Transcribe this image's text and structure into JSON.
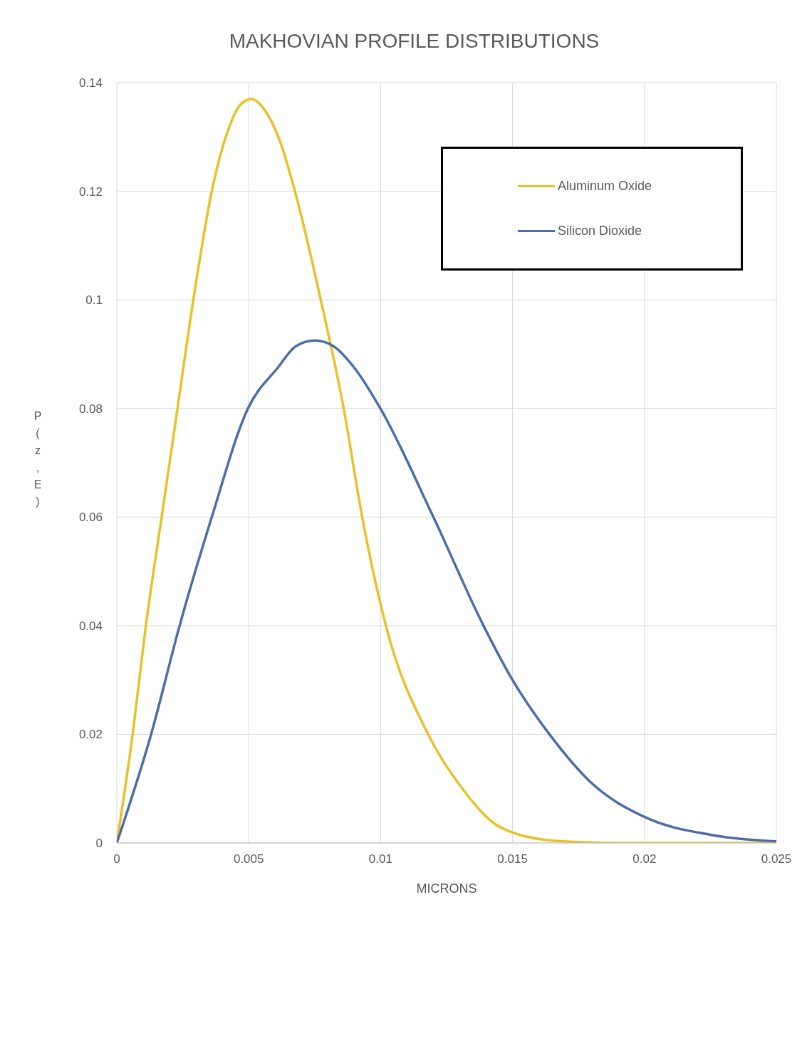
{
  "chart_data": {
    "type": "line",
    "title": "MAKHOVIAN PROFILE DISTRIBUTIONS",
    "xlabel": "MICRONS",
    "ylabel": "P(z,E)",
    "xlim": [
      0,
      0.025
    ],
    "xticks": [
      0,
      0.005,
      0.01,
      0.015,
      0.02,
      0.025
    ],
    "ylim": [
      0,
      0.14
    ],
    "yticks": [
      0,
      0.02,
      0.04,
      0.06,
      0.08,
      0.1,
      0.12,
      0.14
    ],
    "grid": true,
    "legend": "top right",
    "marker": "none",
    "line_style": "solid",
    "series": [
      {
        "name": "Aluminum Oxide",
        "color": "#e6c228",
        "x": [
          0,
          0.0006,
          0.0011,
          0.0017,
          0.0023,
          0.0029,
          0.0036,
          0.0042,
          0.0047,
          0.0051,
          0.0056,
          0.0062,
          0.00675,
          0.00773,
          0.0086,
          0.0093,
          0.0102,
          0.0118,
          0.0131,
          0.0145,
          0.0164,
          0.019,
          0.025
        ],
        "values": [
          0,
          0.02,
          0.04,
          0.06,
          0.08,
          0.1,
          0.12,
          0.131,
          0.136,
          0.137,
          0.135,
          0.129,
          0.12,
          0.1,
          0.08,
          0.06,
          0.04,
          0.02,
          0.01,
          0.003,
          0.0005,
          0,
          0
        ]
      },
      {
        "name": "Silicon Dioxide",
        "color": "#4a6ea6",
        "x": [
          0,
          0.0013,
          0.00238,
          0.0036,
          0.00497,
          0.0061,
          0.0068,
          0.0075,
          0.0082,
          0.009,
          0.00999,
          0.012,
          0.0139,
          0.015,
          0.0164,
          0.018,
          0.02,
          0.0225,
          0.025
        ],
        "values": [
          0,
          0.02,
          0.04,
          0.06,
          0.08,
          0.0875,
          0.0915,
          0.0925,
          0.0915,
          0.0875,
          0.08,
          0.06,
          0.04,
          0.03,
          0.02,
          0.011,
          0.0048,
          0.0015,
          0.0003
        ]
      }
    ]
  }
}
